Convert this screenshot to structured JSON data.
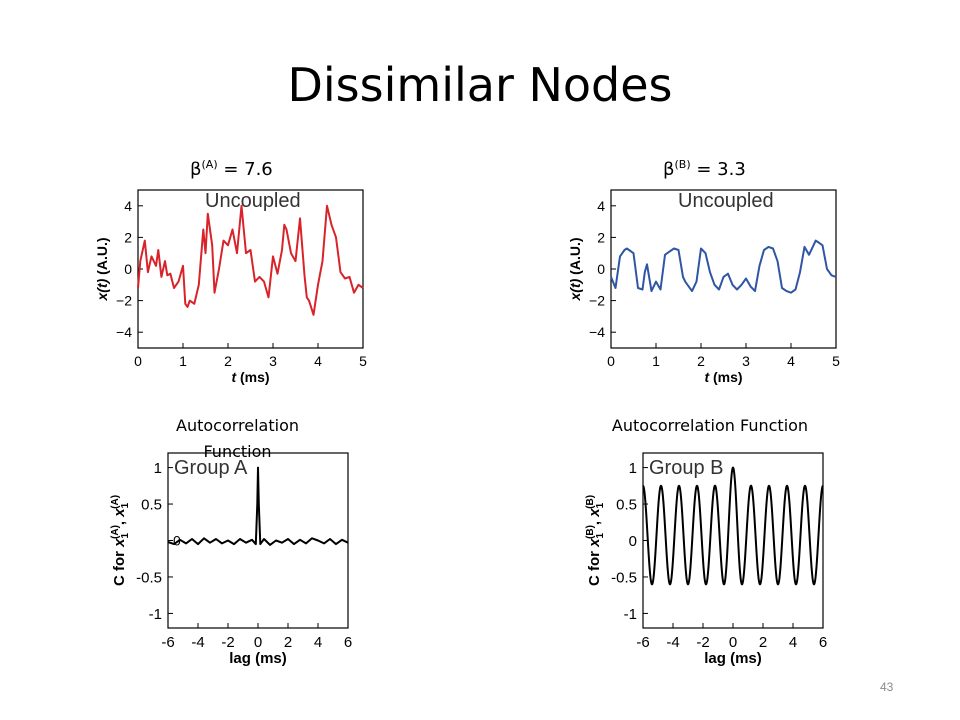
{
  "slide": {
    "title": "Dissimilar Nodes",
    "page_number": "43",
    "beta_a": {
      "symbol": "β",
      "sup": "(A)",
      "value": " = 7.6"
    },
    "beta_b": {
      "symbol": "β",
      "sup": "(B)",
      "value": " = 3.3"
    },
    "caption_a": "Autocorrelation Function",
    "caption_b": "Autocorrelation Function"
  },
  "chart_data": [
    {
      "id": "ts_a",
      "type": "line",
      "inset_label": "Uncoupled",
      "xlabel_italic": "t",
      "xlabel_rest": " (ms)",
      "ylabel_italic": "x(t)",
      "ylabel_rest": " (A.U.)",
      "xlim": [
        0,
        5
      ],
      "ylim": [
        -5,
        5
      ],
      "xticks": [
        "0",
        "1",
        "2",
        "3",
        "4",
        "5"
      ],
      "xtick_values": [
        0,
        1,
        2,
        3,
        4,
        5
      ],
      "yticks": [
        "4",
        "2",
        "0",
        "−2",
        "−4"
      ],
      "ytick_values": [
        4,
        2,
        0,
        -2,
        -4
      ],
      "color": "#d9232a",
      "series": [
        {
          "x": [
            0,
            0.05,
            0.15,
            0.22,
            0.3,
            0.4,
            0.45,
            0.52,
            0.6,
            0.65,
            0.72,
            0.8,
            0.9,
            1.0,
            1.05,
            1.1,
            1.15,
            1.25,
            1.35,
            1.45,
            1.5,
            1.55,
            1.65,
            1.7,
            1.8,
            1.9,
            2.0,
            2.1,
            2.2,
            2.3,
            2.4,
            2.5,
            2.6,
            2.7,
            2.8,
            2.9,
            3.0,
            3.1,
            3.2,
            3.25,
            3.3,
            3.4,
            3.5,
            3.6,
            3.7,
            3.75,
            3.8,
            3.9,
            4.0,
            4.1,
            4.2,
            4.3,
            4.4,
            4.5,
            4.6,
            4.7,
            4.8,
            4.9,
            5.0
          ],
          "y": [
            -1.2,
            0.5,
            1.8,
            -0.2,
            0.8,
            0.2,
            1.2,
            -0.5,
            0.5,
            -0.4,
            -0.3,
            -1.2,
            -0.8,
            0.2,
            -2.2,
            -2.4,
            -2.0,
            -2.2,
            -1.0,
            2.5,
            1.0,
            3.5,
            1.5,
            -1.5,
            0.0,
            1.8,
            1.5,
            2.5,
            1.0,
            4.0,
            1.0,
            1.2,
            -0.8,
            -0.5,
            -0.8,
            -1.8,
            0.8,
            -0.3,
            1.2,
            2.8,
            2.5,
            1.0,
            0.5,
            3.2,
            -0.4,
            -1.8,
            -2.0,
            -2.9,
            -1.0,
            0.5,
            4.0,
            2.8,
            2.0,
            -0.2,
            -0.6,
            -0.5,
            -1.5,
            -1.0,
            -1.2
          ]
        }
      ]
    },
    {
      "id": "ts_b",
      "type": "line",
      "inset_label": "Uncoupled",
      "xlabel_italic": "t",
      "xlabel_rest": " (ms)",
      "ylabel_italic": "x(t)",
      "ylabel_rest": " (A.U.)",
      "xlim": [
        0,
        5
      ],
      "ylim": [
        -5,
        5
      ],
      "xticks": [
        "0",
        "1",
        "2",
        "3",
        "4",
        "5"
      ],
      "xtick_values": [
        0,
        1,
        2,
        3,
        4,
        5
      ],
      "yticks": [
        "4",
        "2",
        "0",
        "−2",
        "−4"
      ],
      "ytick_values": [
        4,
        2,
        0,
        -2,
        -4
      ],
      "color": "#2f55a4",
      "series": [
        {
          "x": [
            0,
            0.1,
            0.2,
            0.3,
            0.35,
            0.4,
            0.5,
            0.6,
            0.7,
            0.75,
            0.8,
            0.9,
            1.0,
            1.1,
            1.2,
            1.3,
            1.4,
            1.5,
            1.6,
            1.65,
            1.7,
            1.8,
            1.9,
            2.0,
            2.1,
            2.2,
            2.3,
            2.4,
            2.5,
            2.6,
            2.7,
            2.8,
            2.9,
            3.0,
            3.1,
            3.2,
            3.3,
            3.4,
            3.5,
            3.6,
            3.7,
            3.8,
            3.9,
            4.0,
            4.1,
            4.2,
            4.3,
            4.4,
            4.5,
            4.55,
            4.6,
            4.7,
            4.8,
            4.9,
            5.0
          ],
          "y": [
            -0.5,
            -1.2,
            0.8,
            1.2,
            1.3,
            1.2,
            1.0,
            -1.2,
            -1.3,
            -0.2,
            0.3,
            -1.4,
            -0.8,
            -1.3,
            0.9,
            1.1,
            1.3,
            1.2,
            -0.5,
            -0.8,
            -1.0,
            -1.4,
            -0.8,
            1.3,
            1.0,
            -0.2,
            -1.0,
            -1.3,
            -0.5,
            -0.3,
            -1.0,
            -1.3,
            -1.0,
            -0.6,
            -1.1,
            -1.4,
            0.2,
            1.2,
            1.4,
            1.3,
            0.5,
            -1.2,
            -1.4,
            -1.5,
            -1.3,
            -0.2,
            1.4,
            0.9,
            1.5,
            1.8,
            1.7,
            1.5,
            0.0,
            -0.4,
            -0.5
          ]
        }
      ]
    },
    {
      "id": "ac_a",
      "type": "line",
      "inset_label": "Group A",
      "xlabel": "lag (ms)",
      "ylabel_prefix": "C for ",
      "ylabel_sym": "x",
      "ylabel_sub1": "1",
      "ylabel_sup1": "(A)",
      "ylabel_sub2": "1",
      "ylabel_sup2": "(A)",
      "zero_label": "0",
      "xlim": [
        -6,
        6
      ],
      "ylim": [
        -1.2,
        1.2
      ],
      "xticks": [
        "-6",
        "-4",
        "-2",
        "0",
        "2",
        "4",
        "6"
      ],
      "xtick_values": [
        -6,
        -4,
        -2,
        0,
        2,
        4,
        6
      ],
      "yticks": [
        "1",
        "0.5",
        "0",
        "-0.5",
        "-1"
      ],
      "ytick_values": [
        1,
        0.5,
        0,
        -0.5,
        -1
      ],
      "color": "#000000",
      "series": [
        {
          "x": [
            -6,
            -5.6,
            -5.2,
            -4.8,
            -4.4,
            -4,
            -3.6,
            -3.2,
            -2.8,
            -2.4,
            -2,
            -1.6,
            -1.2,
            -0.8,
            -0.4,
            -0.15,
            -0.05,
            0,
            0.05,
            0.15,
            0.4,
            0.8,
            1.2,
            1.6,
            2,
            2.4,
            2.8,
            3.2,
            3.6,
            4,
            4.4,
            4.8,
            5.2,
            5.6,
            6
          ],
          "y": [
            -0.02,
            -0.05,
            0.01,
            -0.04,
            0.02,
            -0.05,
            0.03,
            -0.03,
            0.02,
            -0.04,
            0.0,
            -0.05,
            0.02,
            -0.03,
            0.01,
            -0.05,
            0.5,
            1.0,
            0.5,
            -0.05,
            0.02,
            -0.06,
            0.0,
            -0.03,
            0.02,
            -0.05,
            0.01,
            -0.04,
            0.03,
            0.0,
            -0.04,
            0.02,
            -0.05,
            0.01,
            -0.03
          ]
        }
      ]
    },
    {
      "id": "ac_b",
      "type": "line",
      "inset_label": "Group B",
      "xlabel": "lag (ms)",
      "ylabel_prefix": "C for ",
      "ylabel_sym": "x",
      "ylabel_sub1": "1",
      "ylabel_sup1": "(B)",
      "ylabel_sub2": "1",
      "ylabel_sup2": "(B)",
      "zero_label": "0",
      "xlim": [
        -6,
        6
      ],
      "ylim": [
        -1.2,
        1.2
      ],
      "xticks": [
        "-6",
        "-4",
        "-2",
        "0",
        "2",
        "4",
        "6"
      ],
      "xtick_values": [
        -6,
        -4,
        -2,
        0,
        2,
        4,
        6
      ],
      "yticks": [
        "1",
        "0.5",
        "0",
        "-0.5",
        "-1"
      ],
      "ytick_values": [
        1,
        0.5,
        0,
        -0.5,
        -1
      ],
      "color": "#000000",
      "period_ms": 1.2,
      "peak_amplitude": 1.0,
      "side_peak_amplitude": 0.75,
      "trough": -0.6
    }
  ]
}
